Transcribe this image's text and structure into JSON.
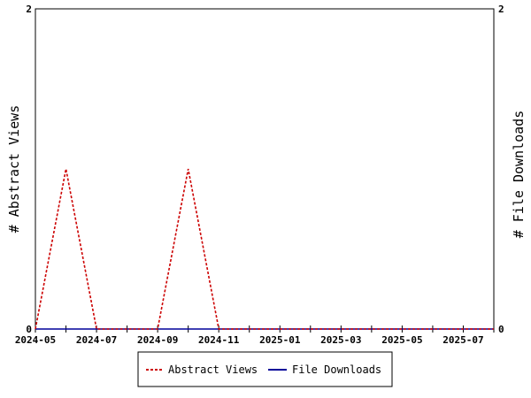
{
  "chart_data": {
    "type": "line",
    "title": "",
    "x": [
      "2024-05",
      "2024-06",
      "2024-07",
      "2024-08",
      "2024-09",
      "2024-10",
      "2024-11",
      "2024-12",
      "2025-01",
      "2025-02",
      "2025-03",
      "2025-04",
      "2025-05",
      "2025-06",
      "2025-07",
      "2025-08"
    ],
    "x_tick_labels": [
      "2024-05",
      "2024-07",
      "2024-09",
      "2024-11",
      "2025-01",
      "2025-03",
      "2025-05",
      "2025-07"
    ],
    "xlim": [
      "2024-05",
      "2025-08"
    ],
    "ylabel_left": "# Abstract Views",
    "ylabel_right": "# File Downloads",
    "ylim_left": [
      0,
      2
    ],
    "ylim_right": [
      0,
      2
    ],
    "y_tick_labels": [
      "0",
      "2"
    ],
    "grid": false,
    "legend_placement": "bottom-center",
    "series": [
      {
        "name": "Abstract Views",
        "axis": "left",
        "color": "#cc0000",
        "style": "dashed",
        "values": [
          0,
          1,
          0,
          0,
          0,
          1,
          0,
          0,
          0,
          0,
          0,
          0,
          0,
          0,
          0,
          0
        ]
      },
      {
        "name": "File Downloads",
        "axis": "right",
        "color": "#000099",
        "style": "solid",
        "values": [
          0,
          0,
          0,
          0,
          0,
          0,
          0,
          0,
          0,
          0,
          0,
          0,
          0,
          0,
          0,
          0
        ]
      }
    ]
  }
}
